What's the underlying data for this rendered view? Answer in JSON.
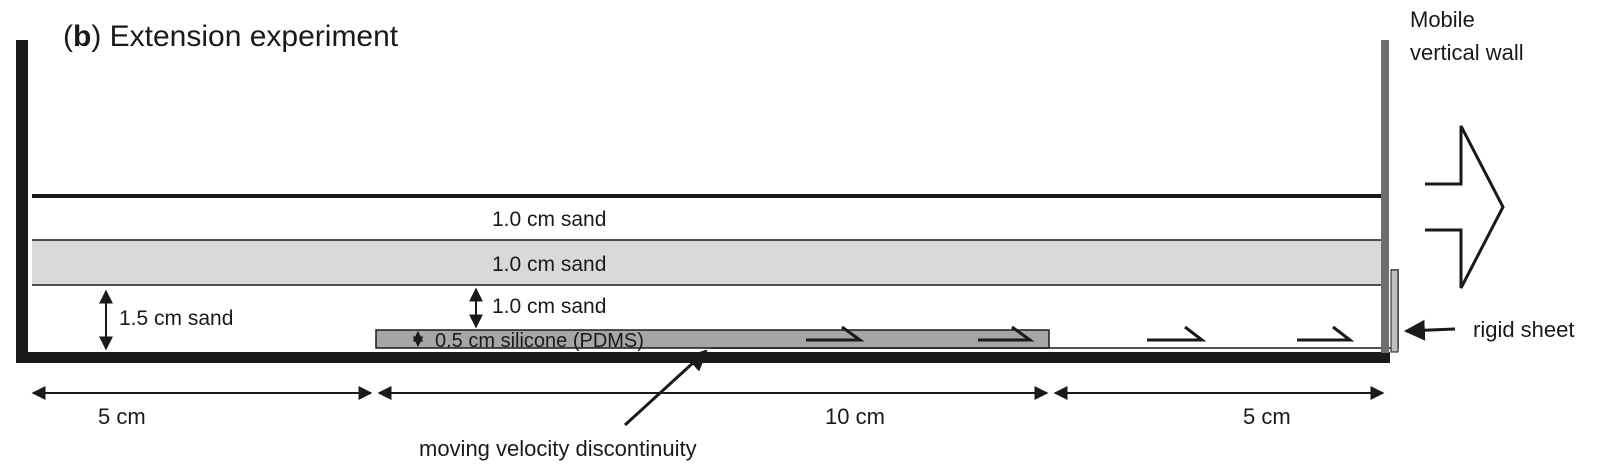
{
  "title": {
    "prefix": "(",
    "letter": "b",
    "suffix": ") Extension experiment"
  },
  "wall_label": {
    "line1": "Mobile",
    "line2": "vertical wall"
  },
  "layers": {
    "top_sand": "1.0 cm sand",
    "middle_sand": "1.0 cm sand",
    "lower_sand": "1.0 cm sand",
    "left_sand": "1.5 cm sand",
    "silicone": "0.5 cm silicone (PDMS)"
  },
  "callouts": {
    "rigid_sheet": "rigid sheet",
    "velocity_discontinuity": "moving velocity discontinuity"
  },
  "dimensions": {
    "left": "5 cm",
    "middle": "10 cm",
    "right": "5 cm"
  },
  "colors": {
    "ink": "#1a1a1a",
    "wall": "#6e6e6e",
    "sand_gray": "#d9d9d9",
    "silicone": "#a6a6a6",
    "sheet": "#c0c0c0"
  }
}
